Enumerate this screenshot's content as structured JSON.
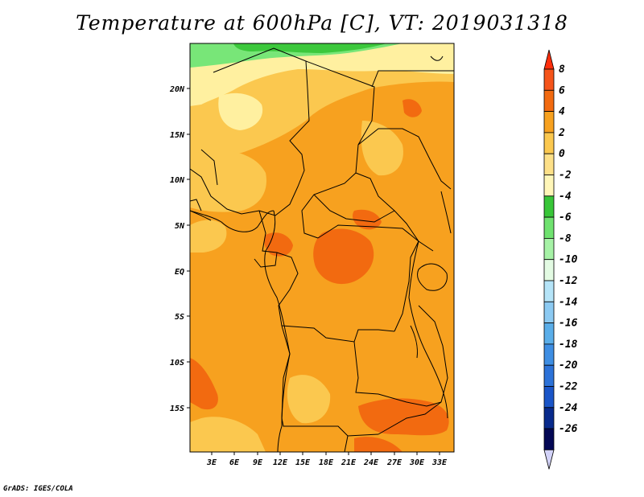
{
  "title": "Temperature at 600hPa [C], VT: 2019031318",
  "credit": "GrADS: IGES/COLA",
  "map": {
    "lon_labels": [
      "3E",
      "6E",
      "9E",
      "12E",
      "15E",
      "18E",
      "21E",
      "24E",
      "27E",
      "30E",
      "33E"
    ],
    "lat_labels": [
      "20N",
      "15N",
      "10N",
      "5N",
      "EQ",
      "5S",
      "10S",
      "15S"
    ],
    "colors": {
      "green_dark": "#3cc83c",
      "green_mid": "#78e678",
      "pale_yellow": "#fff0a0",
      "light_orange": "#fbc84f",
      "orange": "#f7a11f",
      "dark_orange": "#f26a10"
    }
  },
  "colorbar": {
    "labels": [
      "8",
      "6",
      "4",
      "2",
      "0",
      "-2",
      "-4",
      "-6",
      "-8",
      "-10",
      "-12",
      "-14",
      "-16",
      "-18",
      "-20",
      "-22",
      "-24",
      "-26"
    ],
    "colors": [
      "#ff2e0c",
      "#f5541a",
      "#f26a10",
      "#f7a11f",
      "#fbc84f",
      "#fde088",
      "#fff6b8",
      "#38c638",
      "#6fe26f",
      "#a6f2a6",
      "#e3fbe3",
      "#b5e4f8",
      "#8ccaf2",
      "#5aaee9",
      "#3e8ee3",
      "#2c72d8",
      "#1a55c8",
      "#082a8c",
      "#040855",
      "#d2d2f8"
    ]
  }
}
